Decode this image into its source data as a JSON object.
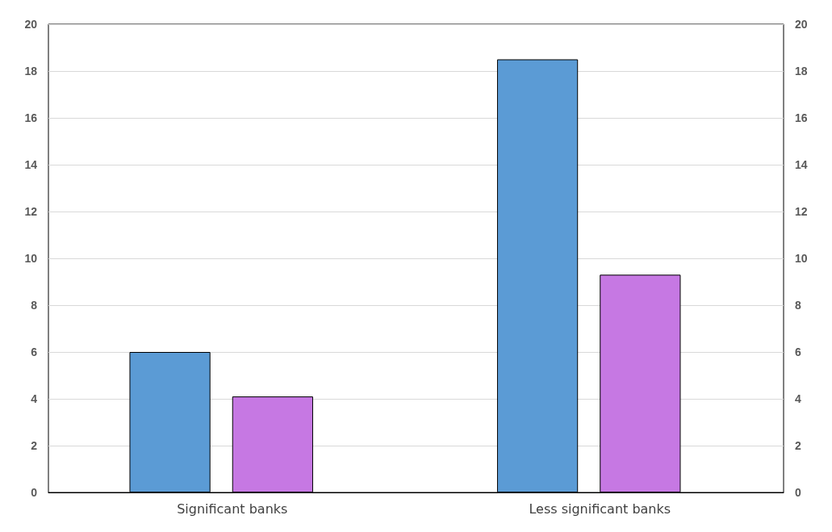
{
  "chart_data": {
    "type": "bar",
    "categories": [
      "Significant banks",
      "Less significant banks"
    ],
    "series": [
      {
        "color": "#5b9bd5",
        "values": [
          6,
          18.5
        ]
      },
      {
        "color": "#c678e3",
        "values": [
          4.1,
          9.3
        ]
      }
    ],
    "ylim": [
      0,
      20
    ],
    "yticks": [
      0,
      2,
      4,
      6,
      8,
      10,
      12,
      14,
      16,
      18,
      20
    ],
    "y2lim": [
      0,
      20
    ],
    "y2ticks": [
      0,
      2,
      4,
      6,
      8,
      10,
      12,
      14,
      16,
      18,
      20
    ],
    "grid": "y"
  }
}
